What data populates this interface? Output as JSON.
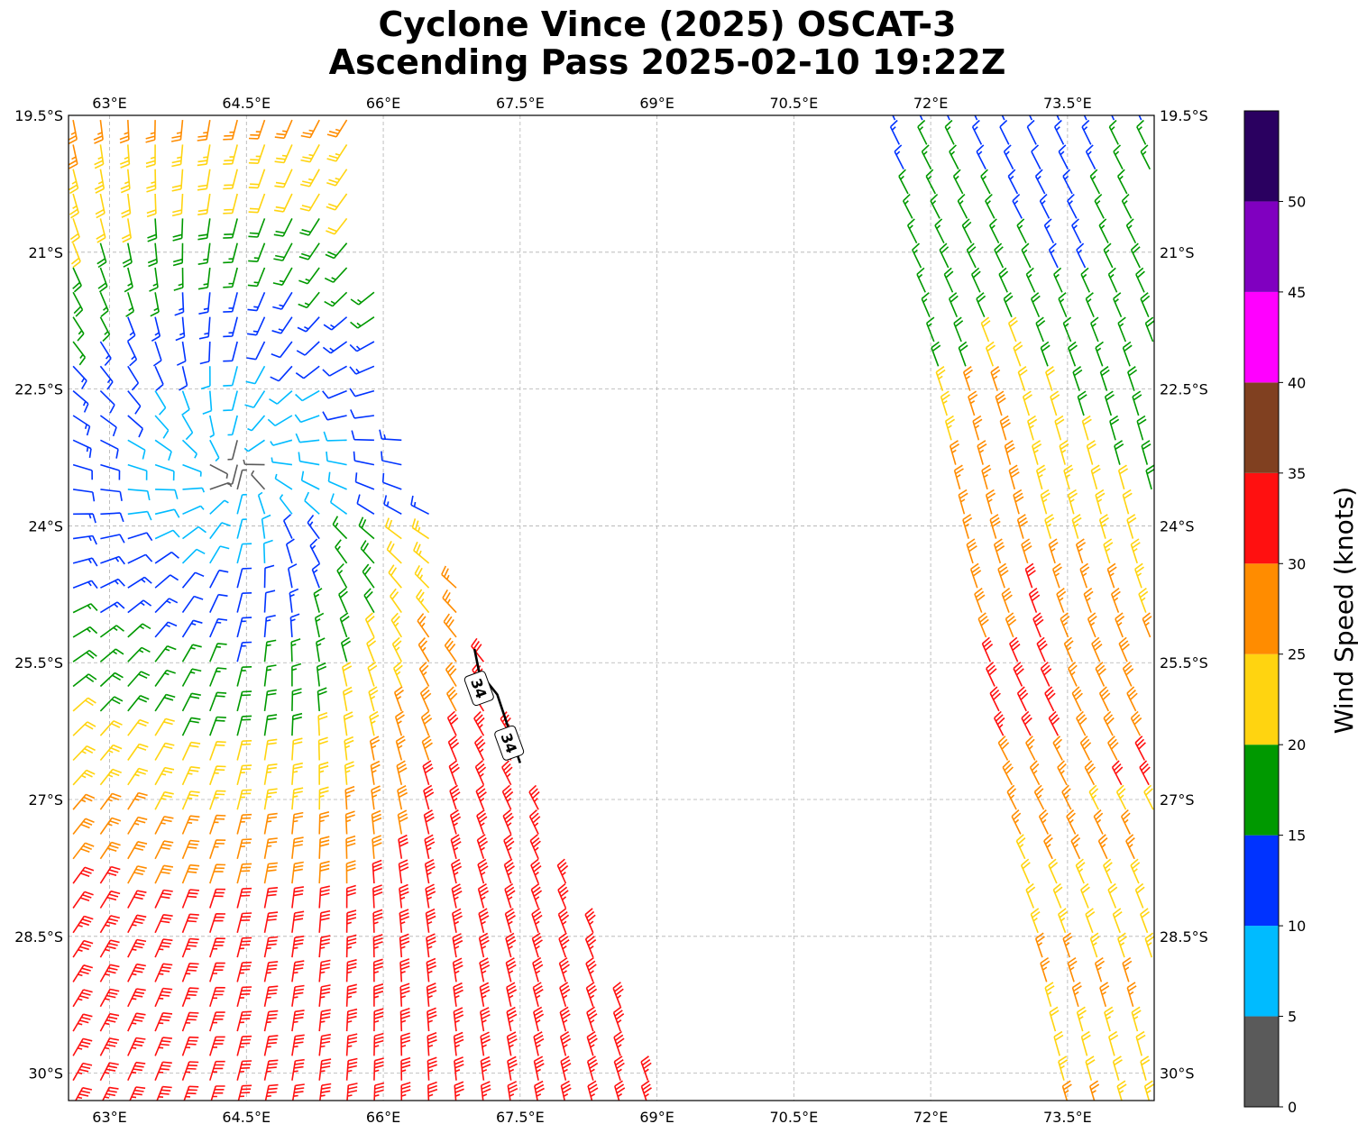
{
  "title": {
    "line1": "Cyclone Vince (2025) OSCAT-3",
    "line2": "Ascending Pass 2025-02-10 19:22Z"
  },
  "map": {
    "lon_range": [
      62.55,
      74.45
    ],
    "lat_range": [
      -30.3,
      -19.5
    ],
    "lon_ticks": [
      {
        "value": 63.0,
        "label": "63°E"
      },
      {
        "value": 64.5,
        "label": "64.5°E"
      },
      {
        "value": 66.0,
        "label": "66°E"
      },
      {
        "value": 67.5,
        "label": "67.5°E"
      },
      {
        "value": 69.0,
        "label": "69°E"
      },
      {
        "value": 70.5,
        "label": "70.5°E"
      },
      {
        "value": 72.0,
        "label": "72°E"
      },
      {
        "value": 73.5,
        "label": "73.5°E"
      }
    ],
    "lat_ticks": [
      {
        "value": -19.5,
        "label": "19.5°S"
      },
      {
        "value": -21.0,
        "label": "21°S"
      },
      {
        "value": -22.5,
        "label": "22.5°S"
      },
      {
        "value": -24.0,
        "label": "24°S"
      },
      {
        "value": -25.5,
        "label": "25.5°S"
      },
      {
        "value": -27.0,
        "label": "27°S"
      },
      {
        "value": -28.5,
        "label": "28.5°S"
      },
      {
        "value": -30.0,
        "label": "30°S"
      }
    ],
    "gridlines": true,
    "wind_center": {
      "lon": 64.4,
      "lat": -23.4
    },
    "swaths": [
      {
        "name": "west",
        "lon_west": 62.55,
        "top_east_lon": 65.7,
        "top_lat": -19.5,
        "kink_lon": 66.0,
        "kink_lat": -22.4,
        "bottom_east_lon": 69.0,
        "bottom_lat": -30.3
      },
      {
        "name": "east",
        "top_west_lon": 71.55,
        "top_lat": -19.5,
        "bottom_west_lon": 73.45,
        "bottom_lat": -30.3,
        "east_lon": 74.45
      }
    ],
    "contour_34kt": {
      "label": "34",
      "points": [
        {
          "lon": 67.0,
          "lat": -25.35
        },
        {
          "lon": 67.05,
          "lat": -25.6
        },
        {
          "lon": 67.25,
          "lat": -25.85
        },
        {
          "lon": 67.4,
          "lat": -26.3
        },
        {
          "lon": 67.5,
          "lat": -26.6
        }
      ],
      "label_positions": [
        {
          "lon": 67.05,
          "lat": -25.78
        },
        {
          "lon": 67.38,
          "lat": -26.38
        }
      ]
    }
  },
  "colorbar": {
    "label": "Wind Speed (knots)",
    "ticks": [
      "0",
      "5",
      "10",
      "15",
      "20",
      "25",
      "30",
      "35",
      "40",
      "45",
      "50"
    ],
    "bins": [
      {
        "min": 0,
        "max": 5,
        "color": "#5a5a5a"
      },
      {
        "min": 5,
        "max": 10,
        "color": "#00bbff"
      },
      {
        "min": 10,
        "max": 15,
        "color": "#0033ff"
      },
      {
        "min": 15,
        "max": 20,
        "color": "#009900"
      },
      {
        "min": 20,
        "max": 25,
        "color": "#ffd410"
      },
      {
        "min": 25,
        "max": 30,
        "color": "#ff8c00"
      },
      {
        "min": 30,
        "max": 35,
        "color": "#ff1010"
      },
      {
        "min": 35,
        "max": 40,
        "color": "#804020"
      },
      {
        "min": 40,
        "max": 45,
        "color": "#ff00ff"
      },
      {
        "min": 45,
        "max": 50,
        "color": "#8000c0"
      },
      {
        "min": 50,
        "max": 55,
        "color": "#2a0060"
      }
    ]
  }
}
